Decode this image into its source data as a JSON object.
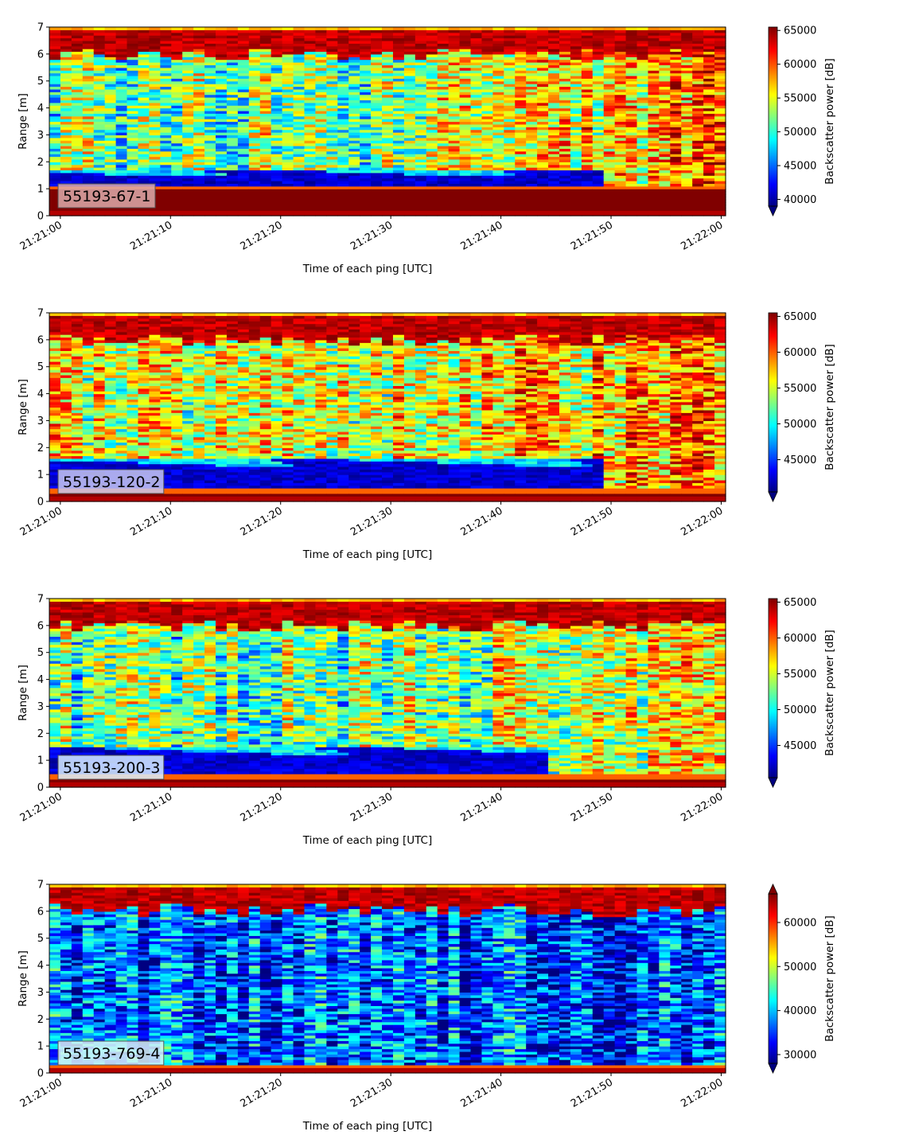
{
  "chart_data": [
    {
      "type": "heatmap",
      "label": "55193-67-1",
      "label_box_color": "#dcaaaa",
      "xlabel": "Time of each ping [UTC]",
      "ylabel": "Range [m]",
      "colorbar_label": "Backscatter power [dB]",
      "xlim": [
        "21:21:00",
        "21:22:00"
      ],
      "ylim": [
        0,
        7
      ],
      "xticks": [
        "21:21:00",
        "21:21:10",
        "21:21:20",
        "21:21:30",
        "21:21:40",
        "21:21:50",
        "21:22:00"
      ],
      "yticks": [
        0,
        1,
        2,
        3,
        4,
        5,
        6,
        7
      ],
      "clim": [
        39000,
        65500
      ],
      "colorbar_ticks": [
        40000,
        45000,
        50000,
        55000,
        60000,
        65000
      ],
      "colorbar_extend": "min",
      "colormap": "jet",
      "profile": {
        "bottom_band_top": 1.15,
        "dark_band_top": 1.75,
        "dark_band_ends": "21:21:50",
        "surface_band_start": 6.0,
        "mid_level": 52000,
        "late_level": 59000
      }
    },
    {
      "type": "heatmap",
      "label": "55193-120-2",
      "label_box_color": "#c8c8f0",
      "xlabel": "Time of each ping [UTC]",
      "ylabel": "Range [m]",
      "colorbar_label": "Backscatter power [dB]",
      "xlim": [
        "21:21:00",
        "21:22:00"
      ],
      "ylim": [
        0,
        7
      ],
      "xticks": [
        "21:21:00",
        "21:21:10",
        "21:21:20",
        "21:21:30",
        "21:21:40",
        "21:21:50",
        "21:22:00"
      ],
      "yticks": [
        0,
        1,
        2,
        3,
        4,
        5,
        6,
        7
      ],
      "clim": [
        40500,
        65500
      ],
      "colorbar_ticks": [
        45000,
        50000,
        55000,
        60000,
        65000
      ],
      "colorbar_extend": "min",
      "colormap": "jet",
      "profile": {
        "bottom_band_top": 0.45,
        "dark_band_top": 1.6,
        "dark_band_ends": "21:21:50",
        "surface_band_start": 6.0,
        "mid_level": 55500,
        "late_level": 58500
      }
    },
    {
      "type": "heatmap",
      "label": "55193-200-3",
      "label_box_color": "#d8f0ff",
      "xlabel": "Time of each ping [UTC]",
      "ylabel": "Range [m]",
      "colorbar_label": "Backscatter power [dB]",
      "xlim": [
        "21:21:00",
        "21:22:00"
      ],
      "ylim": [
        0,
        7
      ],
      "xticks": [
        "21:21:00",
        "21:21:10",
        "21:21:20",
        "21:21:30",
        "21:21:40",
        "21:21:50",
        "21:22:00"
      ],
      "yticks": [
        0,
        1,
        2,
        3,
        4,
        5,
        6,
        7
      ],
      "clim": [
        40500,
        65500
      ],
      "colorbar_ticks": [
        45000,
        50000,
        55000,
        60000,
        65000
      ],
      "colorbar_extend": "min",
      "colormap": "jet",
      "profile": {
        "bottom_band_top": 0.45,
        "dark_band_top": 1.5,
        "dark_band_ends": "21:21:45",
        "surface_band_start": 6.0,
        "mid_level": 52500,
        "late_level": 56000
      }
    },
    {
      "type": "heatmap",
      "label": "55193-769-4",
      "label_box_color": "#d8f4f4",
      "xlabel": "Time of each ping [UTC]",
      "ylabel": "Range [m]",
      "colorbar_label": "Backscatter power [dB]",
      "xlim": [
        "21:21:00",
        "21:22:00"
      ],
      "ylim": [
        0,
        7
      ],
      "xticks": [
        "21:21:00",
        "21:21:10",
        "21:21:20",
        "21:21:30",
        "21:21:40",
        "21:21:50",
        "21:22:00"
      ],
      "yticks": [
        0,
        1,
        2,
        3,
        4,
        5,
        6,
        7
      ],
      "clim": [
        28000,
        66500
      ],
      "colorbar_ticks": [
        30000,
        40000,
        50000,
        60000
      ],
      "colorbar_extend": "both",
      "colormap": "jet",
      "profile": {
        "bottom_band_top": 0.35,
        "dark_band_top": 0.35,
        "dark_band_ends": "21:21:00",
        "surface_band_start": 6.05,
        "mid_level": 36000,
        "late_level": 36000
      }
    }
  ]
}
